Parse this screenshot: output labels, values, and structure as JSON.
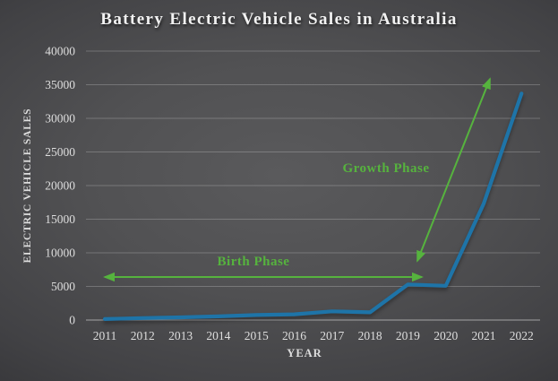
{
  "slide": {
    "title": "Battery Electric Vehicle Sales in Australia"
  },
  "colors": {
    "background_center": "#5a5a5c",
    "background_edge": "#1f1f22",
    "title_text": "#f2f2f2",
    "axis_text": "#dedede",
    "grid_line": "rgba(255,255,255,0.22)",
    "axis_line": "rgba(255,255,255,0.5)",
    "series_blue": "#1e74a8",
    "annotation_green": "#56b33e"
  },
  "chart_data": {
    "type": "line",
    "title": "Battery Electric Vehicle Sales in Australia",
    "xlabel": "YEAR",
    "ylabel": "ELECTRIC VEHICLE SALES",
    "categories": [
      "2011",
      "2012",
      "2013",
      "2014",
      "2015",
      "2016",
      "2017",
      "2018",
      "2019",
      "2020",
      "2021",
      "2022"
    ],
    "series": [
      {
        "name": "Battery electric vehicle sales",
        "values": [
          150,
          300,
          400,
          550,
          750,
          850,
          1300,
          1150,
          5300,
          5100,
          17300,
          33700
        ]
      }
    ],
    "ylim": [
      0,
      40000
    ],
    "ytick_step": 5000,
    "yticks": [
      0,
      5000,
      10000,
      15000,
      20000,
      25000,
      30000,
      35000,
      40000
    ],
    "grid": true,
    "legend": "none",
    "annotations": [
      {
        "id": "birth-phase",
        "label": "Birth Phase",
        "arrow": "double",
        "x1": 117,
        "y1": 309,
        "x2": 471,
        "y2": 309,
        "label_x": 283,
        "label_y": 296
      },
      {
        "id": "growth-phase",
        "label": "Growth Phase",
        "arrow": "double",
        "x1": 466,
        "y1": 291,
        "x2": 547,
        "y2": 88,
        "label_x": 431,
        "label_y": 192
      }
    ]
  }
}
